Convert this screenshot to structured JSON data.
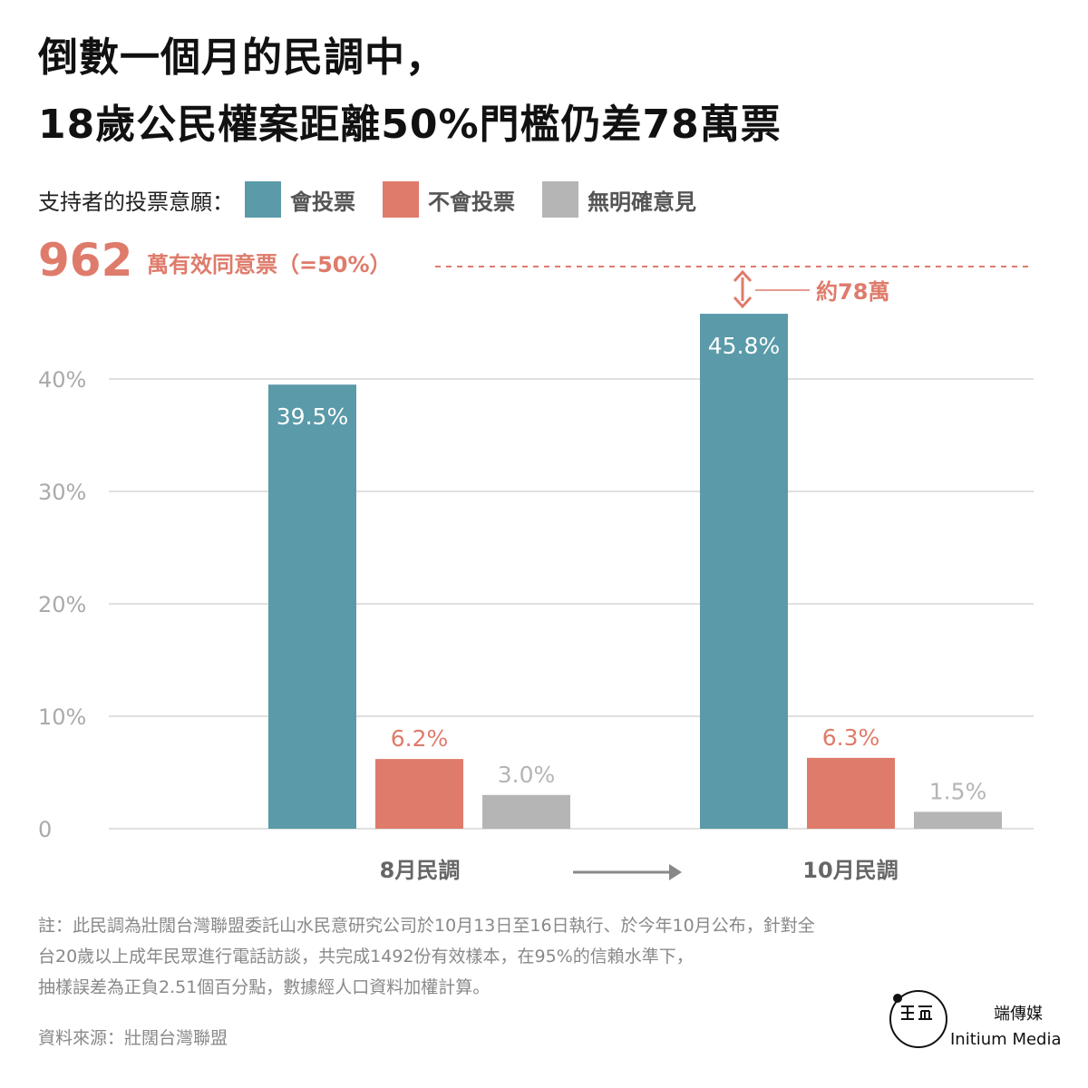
{
  "title": {
    "line1": "倒數一個月的民調中，",
    "line2": "18歲公民權案距離50%門檻仍差78萬票"
  },
  "legend": {
    "intro": "支持者的投票意願：",
    "items": [
      {
        "label": "會投票",
        "color": "#5a9aa9"
      },
      {
        "label": "不會投票",
        "color": "#df7b6b"
      },
      {
        "label": "無明確意見",
        "color": "#b5b5b5"
      }
    ]
  },
  "threshold": {
    "number": "962",
    "label": "萬有效同意票（=50%）",
    "gap_label": "約78萬",
    "color": "#df7b6b"
  },
  "chart_data": {
    "type": "bar",
    "categories": [
      "8月民調",
      "10月民調"
    ],
    "series": [
      {
        "name": "會投票",
        "values": [
          39.5,
          45.8
        ],
        "labels": [
          "39.5%",
          "45.8%"
        ],
        "color": "#5a9aa9"
      },
      {
        "name": "不會投票",
        "values": [
          6.2,
          6.3
        ],
        "labels": [
          "6.2%",
          "6.3%"
        ],
        "color": "#df7b6b"
      },
      {
        "name": "無明確意見",
        "values": [
          3.0,
          1.5
        ],
        "labels": [
          "3.0%",
          "1.5%"
        ],
        "color": "#b5b5b5"
      }
    ],
    "threshold_value": 50,
    "yticks": [
      {
        "value": 0,
        "label": "0"
      },
      {
        "value": 10,
        "label": "10%"
      },
      {
        "value": 20,
        "label": "20%"
      },
      {
        "value": 30,
        "label": "30%"
      },
      {
        "value": 40,
        "label": "40%"
      }
    ],
    "ylim": [
      0,
      50
    ],
    "grid": true,
    "legend_position": "top"
  },
  "notes": {
    "line1": "註：此民調為壯闊台灣聯盟委託山水民意研究公司於10月13日至16日執行、於今年10月公布，針對全",
    "line2": "台20歲以上成年民眾進行電話訪談，共完成1492份有效樣本，在95%的信賴水準下，",
    "line3": "抽樣誤差為正負2.51個百分點，數據經人口資料加權計算。"
  },
  "source": "資料來源：壯闊台灣聯盟",
  "logo": {
    "name": "端傳媒",
    "name_en": "Initium Media"
  }
}
